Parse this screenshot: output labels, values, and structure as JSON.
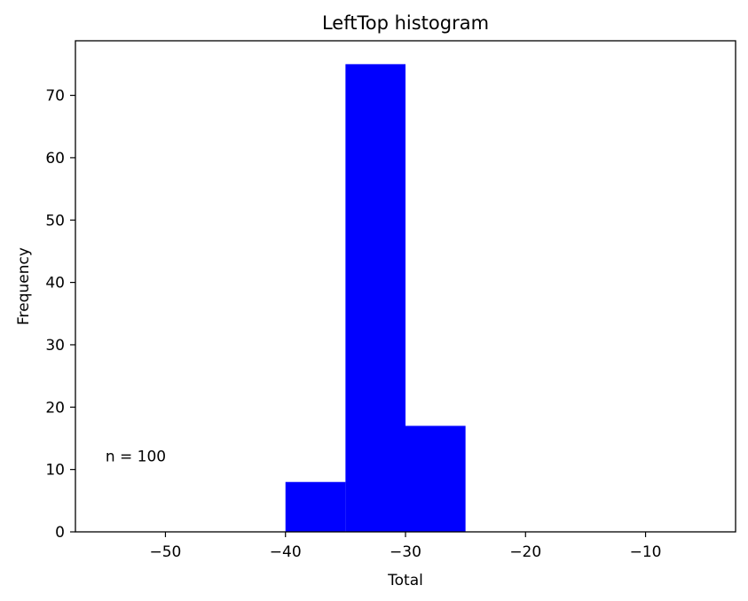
{
  "chart_data": {
    "type": "bar",
    "title": "LeftTop histogram",
    "xlabel": "Total",
    "ylabel": "Frequency",
    "xlim": [
      -57.5,
      -2.5
    ],
    "ylim": [
      0,
      78.75
    ],
    "xticks": [
      -50,
      -40,
      -30,
      -20,
      -10
    ],
    "xtick_labels": [
      "−50",
      "−40",
      "−30",
      "−20",
      "−10"
    ],
    "yticks": [
      0,
      10,
      20,
      30,
      40,
      50,
      60,
      70
    ],
    "ytick_labels": [
      "0",
      "10",
      "20",
      "30",
      "40",
      "50",
      "60",
      "70"
    ],
    "bins": [
      {
        "x0": -40,
        "x1": -35,
        "count": 8
      },
      {
        "x0": -35,
        "x1": -30,
        "count": 75
      },
      {
        "x0": -30,
        "x1": -25,
        "count": 17
      }
    ],
    "bar_color": "#0000ff",
    "grid": false,
    "annotation": "n = 100",
    "annotation_x": -55,
    "annotation_y": 11
  }
}
